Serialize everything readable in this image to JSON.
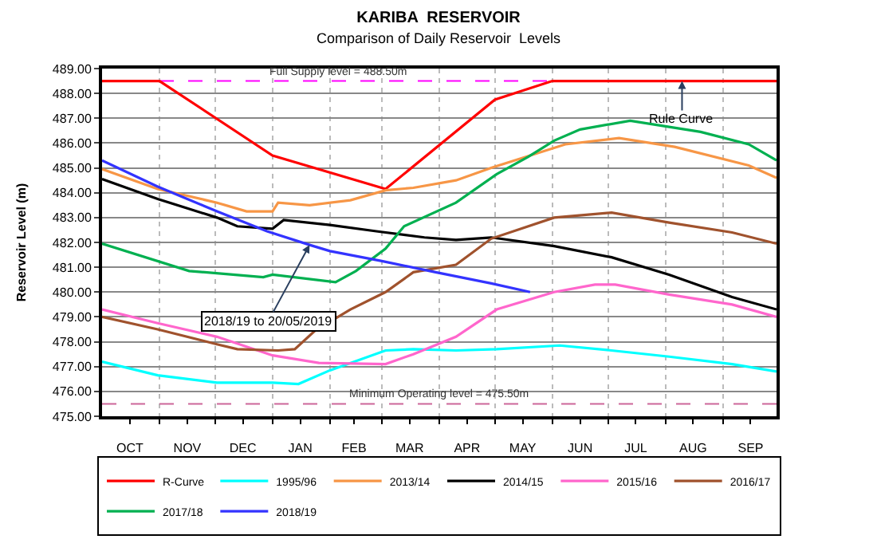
{
  "chart_data": {
    "type": "line",
    "title": "KARIBA  RESERVOIR",
    "subtitle": "Comparison of Daily Reservoir  Levels",
    "ylabel": "Reservoir Level (m)",
    "xlim": [
      "2018-10-01",
      "2019-09-30"
    ],
    "ylim": [
      475,
      489
    ],
    "yticks": [
      {
        "value": 475,
        "label": "475.00"
      },
      {
        "value": 476,
        "label": "476.00"
      },
      {
        "value": 477,
        "label": "477.00"
      },
      {
        "value": 478,
        "label": "478.00"
      },
      {
        "value": 479,
        "label": "479.00"
      },
      {
        "value": 480,
        "label": "480.00"
      },
      {
        "value": 481,
        "label": "481.00"
      },
      {
        "value": 482,
        "label": "482.00"
      },
      {
        "value": 483,
        "label": "483.00"
      },
      {
        "value": 484,
        "label": "484.00"
      },
      {
        "value": 485,
        "label": "485.00"
      },
      {
        "value": 486,
        "label": "486.00"
      },
      {
        "value": 487,
        "label": "487.00"
      },
      {
        "value": 488,
        "label": "488.00"
      },
      {
        "value": 489,
        "label": "489.00"
      }
    ],
    "xticks": [
      {
        "value": "2018-10-16",
        "label": "OCT"
      },
      {
        "value": "2018-11-16",
        "label": "NOV"
      },
      {
        "value": "2018-12-16",
        "label": "DEC"
      },
      {
        "value": "2019-01-16",
        "label": "JAN"
      },
      {
        "value": "2019-02-14",
        "label": "FEB"
      },
      {
        "value": "2019-03-16",
        "label": "MAR"
      },
      {
        "value": "2019-04-16",
        "label": "APR"
      },
      {
        "value": "2019-05-16",
        "label": "MAY"
      },
      {
        "value": "2019-06-16",
        "label": "JUN"
      },
      {
        "value": "2019-07-16",
        "label": "JUL"
      },
      {
        "value": "2019-08-16",
        "label": "AUG"
      },
      {
        "value": "2019-09-16",
        "label": "SEP"
      },
      {
        "value": "2018-11-01",
        "label": null
      },
      {
        "value": "2018-12-01",
        "label": null
      },
      {
        "value": "2019-01-01",
        "label": null
      },
      {
        "value": "2019-02-01",
        "label": null
      },
      {
        "value": "2019-03-01",
        "label": null
      },
      {
        "value": "2019-04-01",
        "label": null
      },
      {
        "value": "2019-05-01",
        "label": null
      },
      {
        "value": "2019-06-01",
        "label": null
      },
      {
        "value": "2019-07-01",
        "label": null
      },
      {
        "value": "2019-08-01",
        "label": null
      },
      {
        "value": "2019-09-01",
        "label": null
      }
    ],
    "grid": true,
    "legend": "bottom",
    "marker": "none",
    "line_style": "solid",
    "series": [
      {
        "name": "R-Curve",
        "color": "#ff0000",
        "x": [
          "2018-10-01",
          "2018-11-01",
          "2019-01-01",
          "2019-03-03",
          "2019-05-01",
          "2019-06-01",
          "2019-09-30"
        ],
        "values": [
          488.5,
          488.5,
          485.5,
          484.15,
          487.75,
          488.5,
          488.5
        ]
      },
      {
        "name": "1995/96",
        "color": "#00ffff",
        "x": [
          "2018-10-01",
          "2018-10-31",
          "2018-12-02",
          "2019-01-01",
          "2019-01-15",
          "2019-02-01",
          "2019-03-03",
          "2019-03-18",
          "2019-04-10",
          "2019-05-02",
          "2019-06-05",
          "2019-07-03",
          "2019-08-03",
          "2019-09-06",
          "2019-09-30"
        ],
        "values": [
          477.2,
          476.65,
          476.35,
          476.35,
          476.3,
          476.85,
          477.65,
          477.7,
          477.65,
          477.7,
          477.85,
          477.65,
          477.4,
          477.1,
          476.8
        ]
      },
      {
        "name": "2013/14",
        "color": "#f79646",
        "x": [
          "2018-10-01",
          "2018-10-31",
          "2018-12-02",
          "2018-12-18",
          "2019-01-01",
          "2019-01-04",
          "2019-01-21",
          "2019-02-12",
          "2019-03-03",
          "2019-03-18",
          "2019-04-10",
          "2019-04-29",
          "2019-06-08",
          "2019-07-07",
          "2019-08-06",
          "2019-09-15",
          "2019-09-30"
        ],
        "values": [
          484.95,
          484.15,
          483.6,
          483.25,
          483.25,
          483.6,
          483.5,
          483.7,
          484.1,
          484.2,
          484.5,
          485.0,
          485.95,
          486.2,
          485.85,
          485.1,
          484.6
        ]
      },
      {
        "name": "2014/15",
        "color": "#000000",
        "x": [
          "2018-10-01",
          "2018-10-31",
          "2018-12-02",
          "2018-12-13",
          "2019-01-01",
          "2019-01-07",
          "2019-02-01",
          "2019-02-26",
          "2019-03-24",
          "2019-04-10",
          "2019-04-29",
          "2019-06-02",
          "2019-07-03",
          "2019-08-03",
          "2019-09-06",
          "2019-09-30"
        ],
        "values": [
          484.55,
          483.75,
          483.0,
          482.65,
          482.55,
          482.9,
          482.7,
          482.45,
          482.2,
          482.1,
          482.2,
          481.85,
          481.4,
          480.7,
          479.8,
          479.3
        ]
      },
      {
        "name": "2015/16",
        "color": "#ff66cc",
        "x": [
          "2018-10-01",
          "2018-10-31",
          "2018-12-02",
          "2019-01-01",
          "2019-01-26",
          "2019-03-03",
          "2019-03-18",
          "2019-04-10",
          "2019-05-02",
          "2019-06-02",
          "2019-06-24",
          "2019-07-05",
          "2019-08-03",
          "2019-09-06",
          "2019-09-30"
        ],
        "values": [
          479.3,
          478.75,
          478.2,
          477.45,
          477.15,
          477.1,
          477.5,
          478.2,
          479.3,
          480.0,
          480.3,
          480.3,
          479.9,
          479.5,
          479.0
        ]
      },
      {
        "name": "2016/17",
        "color": "#a0522d",
        "x": [
          "2018-10-01",
          "2018-10-31",
          "2018-12-02",
          "2018-12-13",
          "2019-01-04",
          "2019-01-13",
          "2019-01-24",
          "2019-02-12",
          "2019-03-03",
          "2019-03-18",
          "2019-04-10",
          "2019-04-29",
          "2019-06-02",
          "2019-07-03",
          "2019-08-03",
          "2019-09-06",
          "2019-09-30"
        ],
        "values": [
          479.0,
          478.5,
          477.9,
          477.7,
          477.65,
          477.7,
          478.45,
          479.3,
          480.0,
          480.8,
          481.1,
          482.15,
          483.0,
          483.2,
          482.8,
          482.4,
          481.95
        ]
      },
      {
        "name": "2017/18",
        "color": "#00b050",
        "x": [
          "2018-10-01",
          "2018-11-17",
          "2018-12-27",
          "2019-01-01",
          "2019-02-04",
          "2019-02-15",
          "2019-03-03",
          "2019-03-13",
          "2019-04-10",
          "2019-05-02",
          "2019-05-19",
          "2019-06-02",
          "2019-06-16",
          "2019-07-13",
          "2019-08-20",
          "2019-09-15",
          "2019-09-30"
        ],
        "values": [
          481.95,
          480.85,
          480.6,
          480.7,
          480.4,
          480.85,
          481.75,
          482.65,
          483.6,
          484.75,
          485.45,
          486.1,
          486.55,
          486.9,
          486.45,
          485.95,
          485.3
        ]
      },
      {
        "name": "2018/19",
        "color": "#3333ff",
        "x": [
          "2018-10-01",
          "2018-10-31",
          "2018-12-02",
          "2018-12-29",
          "2019-01-21",
          "2019-02-01",
          "2019-03-01",
          "2019-03-30",
          "2019-04-29",
          "2019-05-20"
        ],
        "values": [
          485.3,
          484.25,
          483.25,
          482.45,
          481.9,
          481.65,
          481.25,
          480.8,
          480.35,
          480.0
        ]
      }
    ],
    "ref_lines": [
      {
        "axis": "y",
        "value": 488.5,
        "label": "Full Supply level = 488.50m",
        "color": "#ff00ff",
        "line_style": "dashed"
      },
      {
        "axis": "y",
        "value": 475.5,
        "label": "Minimum Operating level = 475.50m",
        "color": "#cc6699",
        "line_style": "dashed"
      }
    ],
    "annotations": [
      {
        "text": "Rule Curve",
        "x": "2019-08-10",
        "y": 488.5
      },
      {
        "text": "2018/19 to 20/05/2019",
        "x": "2019-01-21",
        "y": 481.9
      }
    ]
  }
}
